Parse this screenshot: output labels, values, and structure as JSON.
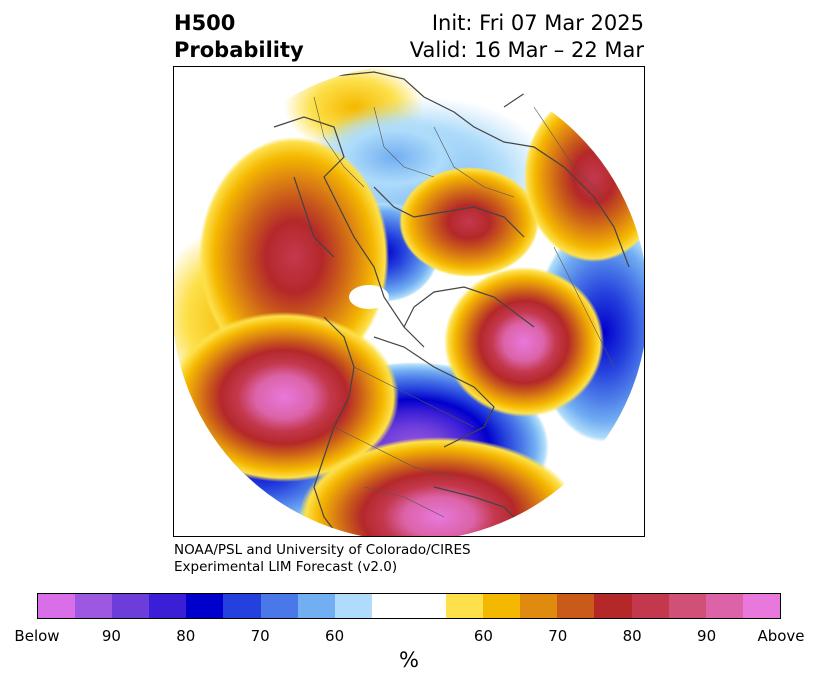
{
  "title": {
    "left_line1": "H500",
    "left_line2": "Probability",
    "right_line1": "Init: Fri 07 Mar 2025",
    "right_line2": "Valid: 16 Mar – 22 Mar"
  },
  "credit": {
    "line1": "NOAA/PSL and University of Colorado/CIRES",
    "line2": "Experimental LIM Forecast (v2.0)"
  },
  "colorbar": {
    "unit": "%",
    "ticks": [
      "Below",
      "90",
      "80",
      "70",
      "60",
      "60",
      "70",
      "80",
      "90",
      "Above"
    ],
    "below_colors": [
      "#d96ee8",
      "#9c58e0",
      "#6c3ddb",
      "#3b1fd6",
      "#0000cc",
      "#2440dd",
      "#4a78e8",
      "#72aef2",
      "#aedcfa"
    ],
    "neutral_color": "#ffffff",
    "above_colors": [
      "#fde04a",
      "#f5b800",
      "#e08a10",
      "#c95a1a",
      "#b4282a",
      "#c4384e",
      "#d05078",
      "#dc63a8",
      "#e878dc"
    ]
  },
  "map": {
    "projection": "north-polar-stereographic",
    "anomalies": [
      {
        "region": "Western Europe",
        "sign": "above",
        "max_level": "80"
      },
      {
        "region": "Eastern Siberia",
        "sign": "above",
        "max_level": "80"
      },
      {
        "region": "North Pacific / Alaska",
        "sign": "above",
        "max_level": "Above"
      },
      {
        "region": "North Atlantic",
        "sign": "above",
        "max_level": "Above"
      },
      {
        "region": "Southeastern United States",
        "sign": "above",
        "max_level": "Above"
      },
      {
        "region": "Central Canada",
        "sign": "below",
        "max_level": "Below"
      },
      {
        "region": "Western Russia",
        "sign": "below",
        "max_level": "80"
      },
      {
        "region": "Arctic",
        "sign": "below",
        "max_level": "80"
      }
    ]
  }
}
